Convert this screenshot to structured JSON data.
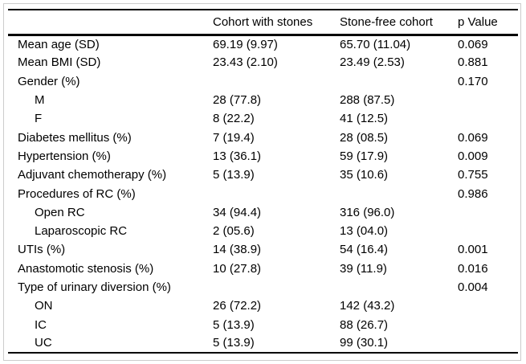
{
  "colors": {
    "background": "#ffffff",
    "text": "#000000",
    "rule": "#000000",
    "frame": "#cccccc"
  },
  "table": {
    "columns": [
      "",
      "Cohort with stones",
      "Stone-free cohort",
      "p Value"
    ],
    "rows": [
      {
        "label": "Mean age (SD)",
        "indent": false,
        "stones": "69.19 (9.97)",
        "stone_free": "65.70 (11.04)",
        "p": "0.069"
      },
      {
        "label": "Mean BMI (SD)",
        "indent": false,
        "stones": "23.43 (2.10)",
        "stone_free": "23.49 (2.53)",
        "p": "0.881"
      },
      {
        "label": "Gender (%)",
        "indent": false,
        "stones": "",
        "stone_free": "",
        "p": "0.170"
      },
      {
        "label": "M",
        "indent": true,
        "stones": "28 (77.8)",
        "stone_free": "288 (87.5)",
        "p": ""
      },
      {
        "label": "F",
        "indent": true,
        "stones": "8 (22.2)",
        "stone_free": "41 (12.5)",
        "p": ""
      },
      {
        "label": "Diabetes mellitus (%)",
        "indent": false,
        "stones": "7 (19.4)",
        "stone_free": "28 (08.5)",
        "p": "0.069"
      },
      {
        "label": "Hypertension (%)",
        "indent": false,
        "stones": "13 (36.1)",
        "stone_free": "59 (17.9)",
        "p": "0.009"
      },
      {
        "label": "Adjuvant chemotherapy (%)",
        "indent": false,
        "stones": "5 (13.9)",
        "stone_free": "35 (10.6)",
        "p": "0.755"
      },
      {
        "label": "Procedures of RC (%)",
        "indent": false,
        "stones": "",
        "stone_free": "",
        "p": "0.986"
      },
      {
        "label": "Open RC",
        "indent": true,
        "stones": "34 (94.4)",
        "stone_free": "316 (96.0)",
        "p": ""
      },
      {
        "label": "Laparoscopic RC",
        "indent": true,
        "stones": "2 (05.6)",
        "stone_free": "13 (04.0)",
        "p": ""
      },
      {
        "label": "UTIs (%)",
        "indent": false,
        "stones": "14 (38.9)",
        "stone_free": "54 (16.4)",
        "p": "0.001"
      },
      {
        "label": "Anastomotic stenosis (%)",
        "indent": false,
        "stones": "10 (27.8)",
        "stone_free": "39 (11.9)",
        "p": "0.016"
      },
      {
        "label": "Type of urinary diversion (%)",
        "indent": false,
        "stones": "",
        "stone_free": "",
        "p": "0.004"
      },
      {
        "label": "ON",
        "indent": true,
        "stones": "26 (72.2)",
        "stone_free": "142 (43.2)",
        "p": ""
      },
      {
        "label": "IC",
        "indent": true,
        "stones": "5 (13.9)",
        "stone_free": "88 (26.7)",
        "p": ""
      },
      {
        "label": "UC",
        "indent": true,
        "stones": "5 (13.9)",
        "stone_free": "99 (30.1)",
        "p": ""
      }
    ]
  }
}
